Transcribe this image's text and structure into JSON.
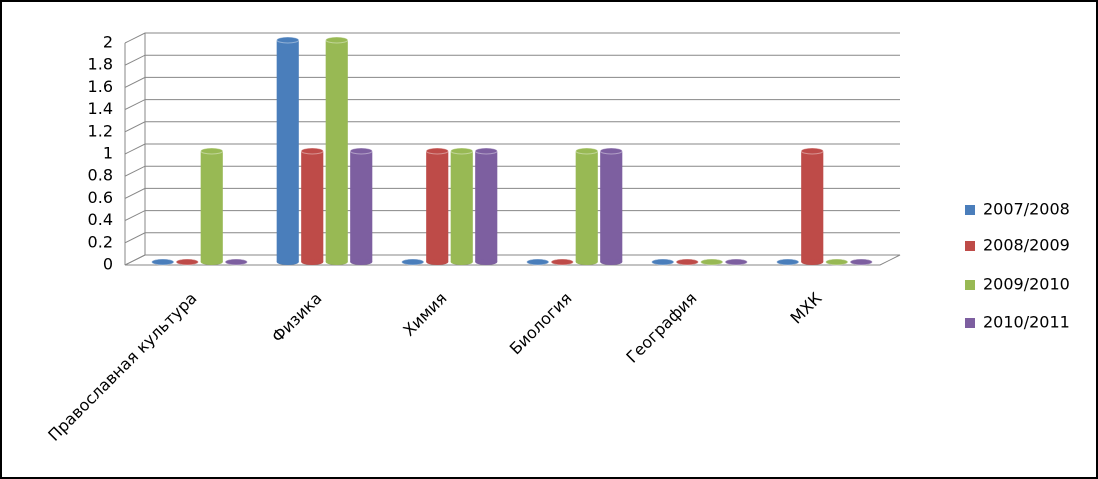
{
  "chart_data": {
    "type": "bar",
    "categories": [
      "Православная культура",
      "Физика",
      "Химия",
      "Биология",
      "География",
      "МХК"
    ],
    "series": [
      {
        "name": "2007/2008",
        "color": "#4a7ebb",
        "values": [
          0,
          2,
          0,
          0,
          0,
          0
        ]
      },
      {
        "name": "2008/2009",
        "color": "#be4b48",
        "values": [
          0,
          1,
          1,
          0,
          0,
          1
        ]
      },
      {
        "name": "2009/2010",
        "color": "#98b954",
        "values": [
          1,
          2,
          1,
          1,
          0,
          0
        ]
      },
      {
        "name": "2010/2011",
        "color": "#7d5fa0",
        "values": [
          0,
          1,
          1,
          1,
          0,
          0
        ]
      }
    ],
    "ylim": [
      0,
      2
    ],
    "yticks": [
      0,
      0.2,
      0.4,
      0.6,
      0.8,
      1,
      1.2,
      1.4,
      1.6,
      1.8,
      2
    ],
    "grid": true,
    "legend": "right"
  }
}
